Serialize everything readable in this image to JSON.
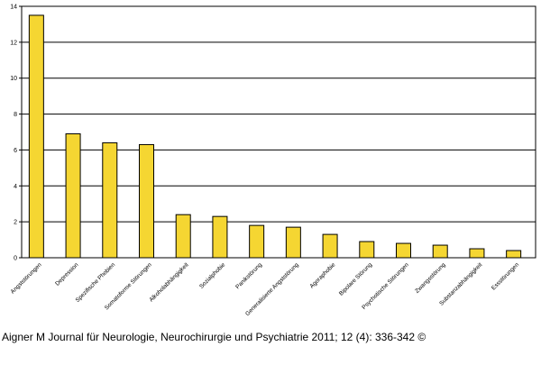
{
  "chart_data": {
    "type": "bar",
    "categories": [
      "Angststörungen",
      "Depression",
      "Spezifische Phobien",
      "Somatoforme Störungen",
      "Alkoholabhängigkeit",
      "Sozialphobie",
      "Panikstörung",
      "Generalisierte Angststörung",
      "Agoraphobie",
      "Bipolare Störung",
      "Psychotische Störungen",
      "Zwangsstörung",
      "Substanzabhängigkeit",
      "Essstörungen"
    ],
    "values": [
      13.5,
      6.9,
      6.4,
      6.3,
      2.4,
      2.3,
      1.8,
      1.7,
      1.3,
      0.9,
      0.8,
      0.7,
      0.5,
      0.4
    ],
    "yticks": [
      "0",
      "2",
      "4",
      "6",
      "8",
      "10",
      "12",
      "14"
    ],
    "ylim": [
      0,
      14
    ],
    "grid": true,
    "bar_color": "#f5d632",
    "bar_outline": "#000000"
  },
  "citation": "Aigner M Journal für Neurologie, Neurochirurgie und Psychiatrie 2011; 12 (4): 336-342 ©"
}
